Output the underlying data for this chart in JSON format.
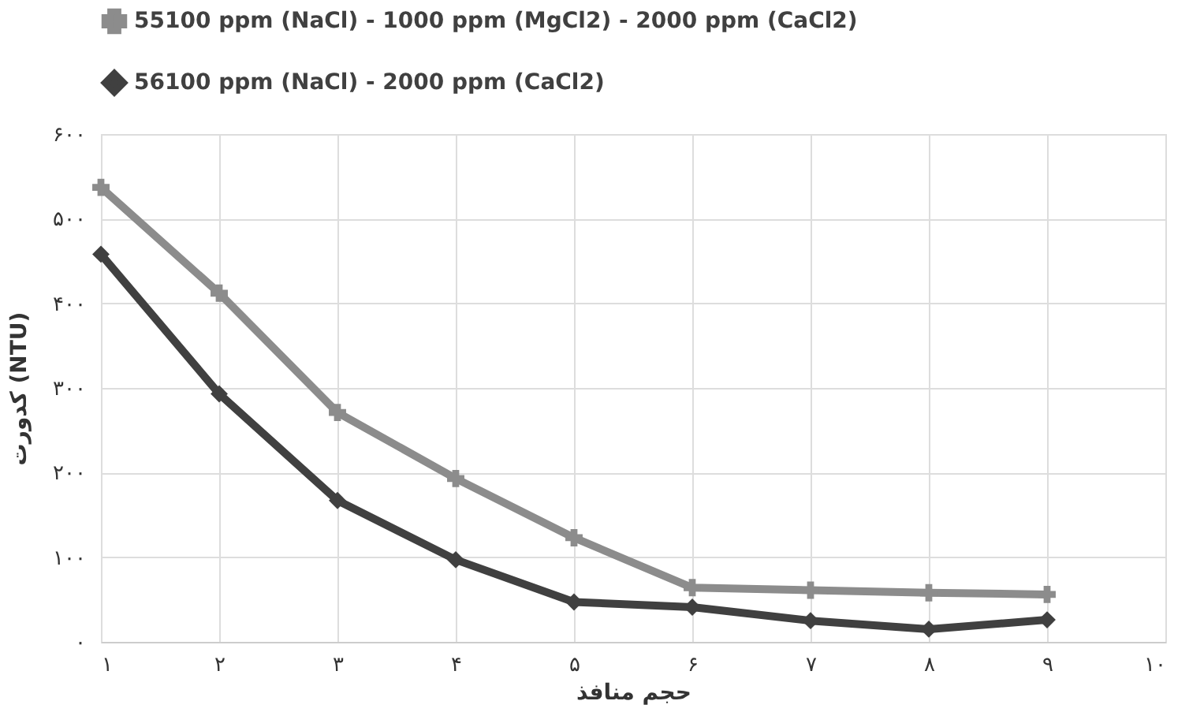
{
  "chart_data": {
    "type": "line",
    "xlabel": "حجم منافذ",
    "ylabel": "کدورت (NTU)",
    "x": [
      1,
      2,
      3,
      4,
      5,
      6,
      7,
      8,
      9
    ],
    "xlim": [
      1,
      10
    ],
    "xticks": [
      {
        "value": 1,
        "label": "۱"
      },
      {
        "value": 2,
        "label": "۲"
      },
      {
        "value": 3,
        "label": "۳"
      },
      {
        "value": 4,
        "label": "۴"
      },
      {
        "value": 5,
        "label": "۵"
      },
      {
        "value": 6,
        "label": "۶"
      },
      {
        "value": 7,
        "label": "۷"
      },
      {
        "value": 8,
        "label": "۸"
      },
      {
        "value": 9,
        "label": "۹"
      },
      {
        "value": 10,
        "label": "۱۰"
      }
    ],
    "ylim": [
      0,
      600
    ],
    "yticks": [
      {
        "value": 0,
        "label": "۰"
      },
      {
        "value": 100,
        "label": "۱۰۰"
      },
      {
        "value": 200,
        "label": "۲۰۰"
      },
      {
        "value": 300,
        "label": "۳۰۰"
      },
      {
        "value": 400,
        "label": "۴۰۰"
      },
      {
        "value": 500,
        "label": "۵۰۰"
      },
      {
        "value": 600,
        "label": "۶۰۰"
      }
    ],
    "grid": true,
    "legend": "top",
    "line_style": "solid",
    "series": [
      {
        "name": "55100 ppm (NaCl) - 1000 ppm (MgCl2) - 2000 ppm (CaCl2)",
        "color": "#8c8c8c",
        "marker": "cross",
        "values": [
          537,
          412,
          271,
          193,
          123,
          64,
          61,
          58,
          56
        ]
      },
      {
        "name": "56100 ppm (NaCl) - 2000 ppm (CaCl2)",
        "color": "#404040",
        "marker": "diamond",
        "values": [
          458,
          293,
          167,
          97,
          47,
          41,
          25,
          15,
          26
        ]
      }
    ]
  }
}
